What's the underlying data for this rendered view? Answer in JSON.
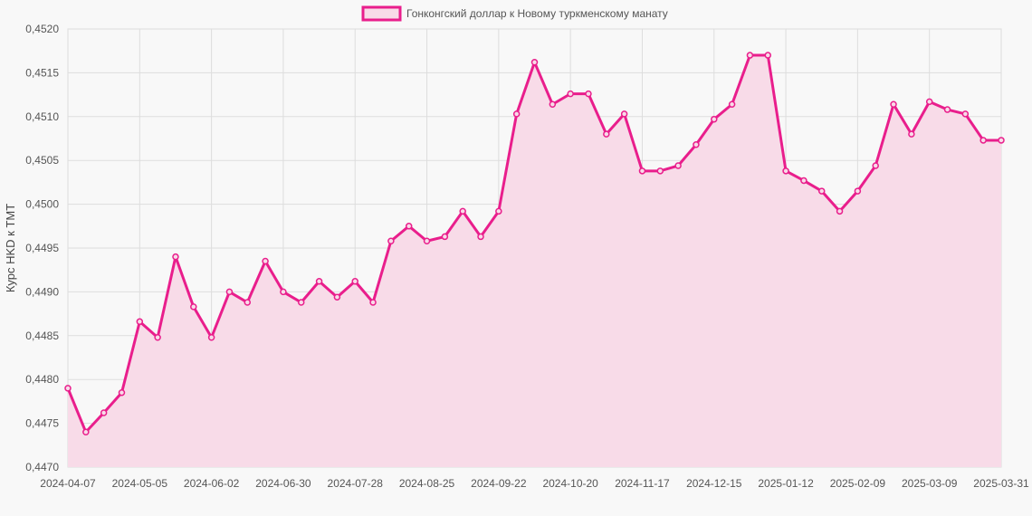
{
  "chart_data": {
    "type": "area",
    "title": "",
    "xlabel": "",
    "ylabel": "Курс HKD к TMT",
    "legend": {
      "placement": "top-center"
    },
    "grid": true,
    "ylim": [
      0.447,
      0.452
    ],
    "y_ticks": [
      "0,4470",
      "0,4475",
      "0,4480",
      "0,4485",
      "0,4490",
      "0,4495",
      "0,4500",
      "0,4505",
      "0,4510",
      "0,4515",
      "0,4520"
    ],
    "x_ticks": [
      "2024-04-07",
      "2024-05-05",
      "2024-06-02",
      "2024-06-30",
      "2024-07-28",
      "2024-08-25",
      "2024-09-22",
      "2024-10-20",
      "2024-11-17",
      "2024-12-15",
      "2025-01-12",
      "2025-02-09",
      "2025-03-09",
      "2025-03-31"
    ],
    "series": [
      {
        "name": "Гонконгский доллар к Новому туркменскому манату",
        "color": "#e91e8c",
        "fill": "#f8dbe8",
        "values": [
          0.4479,
          0.4474,
          0.44762,
          0.44785,
          0.44866,
          0.44848,
          0.4494,
          0.44883,
          0.44848,
          0.449,
          0.44888,
          0.44935,
          0.449,
          0.44888,
          0.44912,
          0.44894,
          0.44912,
          0.44888,
          0.44958,
          0.44975,
          0.44958,
          0.44963,
          0.44992,
          0.44963,
          0.44992,
          0.45103,
          0.45162,
          0.45114,
          0.45126,
          0.45126,
          0.4508,
          0.45103,
          0.45038,
          0.45038,
          0.45044,
          0.45068,
          0.45097,
          0.45114,
          0.4517,
          0.4517,
          0.45038,
          0.45027,
          0.45015,
          0.44992,
          0.45015,
          0.45044,
          0.45114,
          0.4508,
          0.45117,
          0.45108,
          0.45103,
          0.45073,
          0.45073
        ]
      }
    ]
  }
}
